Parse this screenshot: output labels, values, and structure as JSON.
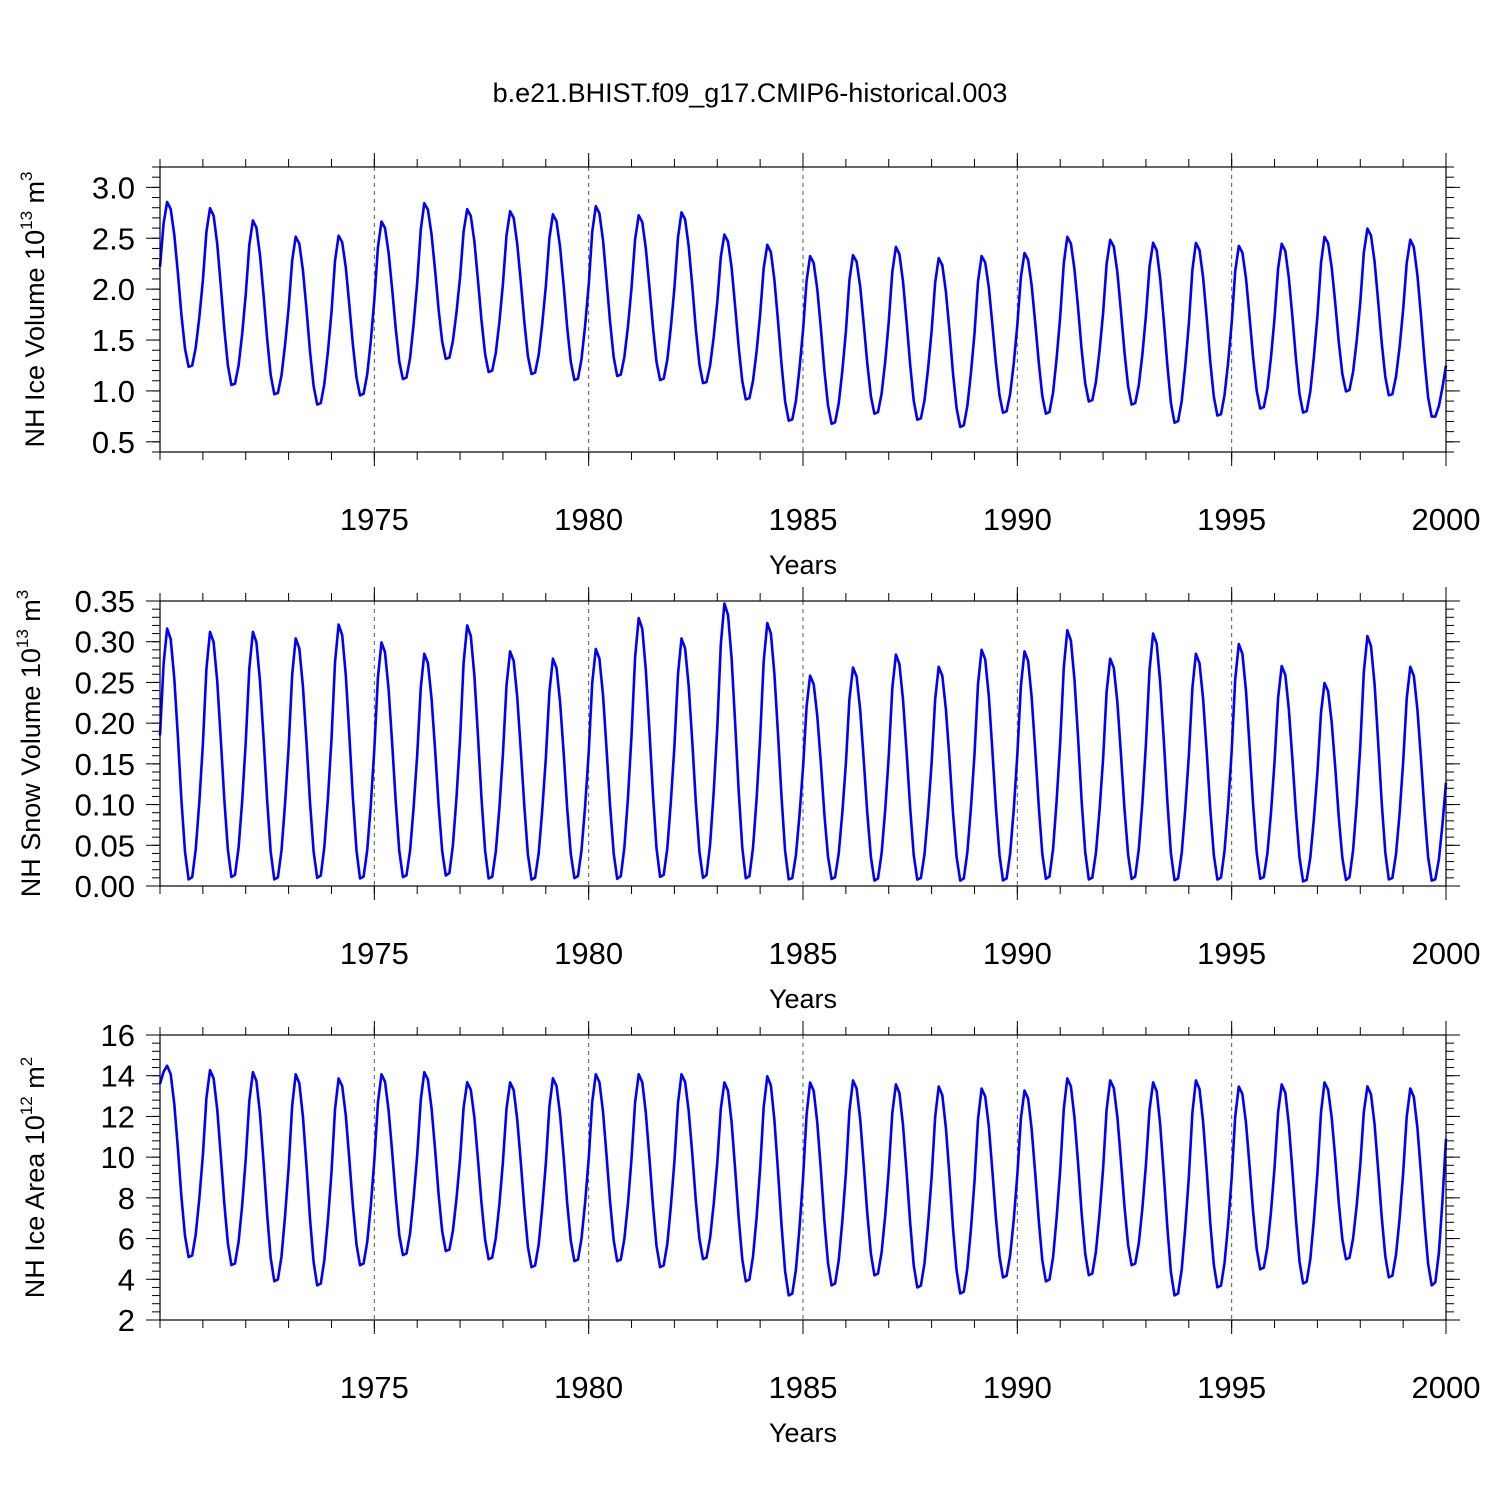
{
  "figure_title": "b.e21.BHIST.f09_g17.CMIP6-historical.003",
  "series_color": "#0000ff",
  "chart_data": [
    {
      "type": "line",
      "name": "ice-volume",
      "ylabel": "NH Ice Volume",
      "ylabel_exp": "10",
      "ylabel_exp_power": "13",
      "ylabel_unit": "m",
      "ylabel_unit_power": "3",
      "xlabel": "Years",
      "xlim": [
        1970.0,
        2000.0
      ],
      "ylim": [
        0.4,
        3.2
      ],
      "yticks": [
        0.5,
        1.0,
        1.5,
        2.0,
        2.5,
        3.0
      ],
      "ytick_labels": [
        "0.5",
        "1.0",
        "1.5",
        "2.0",
        "2.5",
        "3.0"
      ],
      "xticks": [
        1975,
        1980,
        1985,
        1990,
        1995,
        2000
      ],
      "xtick_labels": [
        "1975",
        "1980",
        "1985",
        "1990",
        "1995",
        "2000"
      ],
      "grid": "dashed vertical at major x ticks",
      "start": 2.22,
      "end_value": 1.25,
      "annual_max": [
        2.86,
        2.8,
        2.68,
        2.52,
        2.53,
        2.67,
        2.85,
        2.79,
        2.77,
        2.74,
        2.82,
        2.73,
        2.76,
        2.54,
        2.44,
        2.33,
        2.34,
        2.42,
        2.31,
        2.33,
        2.36,
        2.52,
        2.49,
        2.46,
        2.46,
        2.43,
        2.45,
        2.52,
        2.6,
        2.49
      ],
      "annual_min": [
        1.22,
        1.04,
        0.95,
        0.85,
        0.94,
        1.1,
        1.3,
        1.17,
        1.15,
        1.09,
        1.13,
        1.09,
        1.06,
        0.9,
        0.69,
        0.66,
        0.76,
        0.7,
        0.63,
        0.77,
        0.76,
        0.88,
        0.85,
        0.67,
        0.74,
        0.81,
        0.77,
        0.98,
        0.94,
        0.73
      ]
    },
    {
      "type": "line",
      "name": "snow-volume",
      "ylabel": "NH Snow Volume",
      "ylabel_exp": "10",
      "ylabel_exp_power": "13",
      "ylabel_unit": "m",
      "ylabel_unit_power": "3",
      "xlabel": "Years",
      "xlim": [
        1970.0,
        2000.0
      ],
      "ylim": [
        0.0,
        0.35
      ],
      "yticks": [
        0.0,
        0.05,
        0.1,
        0.15,
        0.2,
        0.25,
        0.3,
        0.35
      ],
      "ytick_labels": [
        "0.00",
        "0.05",
        "0.10",
        "0.15",
        "0.20",
        "0.25",
        "0.30",
        "0.35"
      ],
      "xticks": [
        1975,
        1980,
        1985,
        1990,
        1995,
        2000
      ],
      "xtick_labels": [
        "1975",
        "1980",
        "1985",
        "1990",
        "1995",
        "2000"
      ],
      "grid": "dashed vertical at major x ticks",
      "start": 0.185,
      "end_value": 0.127,
      "annual_max": [
        0.317,
        0.313,
        0.313,
        0.305,
        0.322,
        0.3,
        0.286,
        0.321,
        0.289,
        0.28,
        0.292,
        0.33,
        0.305,
        0.348,
        0.324,
        0.259,
        0.269,
        0.285,
        0.27,
        0.291,
        0.289,
        0.315,
        0.28,
        0.311,
        0.286,
        0.298,
        0.271,
        0.25,
        0.308,
        0.27
      ],
      "annual_min": [
        0.005,
        0.008,
        0.005,
        0.007,
        0.006,
        0.008,
        0.01,
        0.006,
        0.005,
        0.007,
        0.006,
        0.008,
        0.007,
        0.006,
        0.005,
        0.006,
        0.004,
        0.005,
        0.004,
        0.004,
        0.006,
        0.005,
        0.006,
        0.004,
        0.005,
        0.006,
        0.003,
        0.005,
        0.005,
        0.004
      ]
    },
    {
      "type": "line",
      "name": "ice-area",
      "ylabel": "NH Ice Area",
      "ylabel_exp": "10",
      "ylabel_exp_power": "12",
      "ylabel_unit": "m",
      "ylabel_unit_power": "2",
      "xlabel": "Years",
      "xlim": [
        1970.0,
        2000.0
      ],
      "ylim": [
        2,
        16
      ],
      "yticks": [
        2,
        4,
        6,
        8,
        10,
        12,
        14,
        16
      ],
      "ytick_labels": [
        "2",
        "4",
        "6",
        "8",
        "10",
        "12",
        "14",
        "16"
      ],
      "xticks": [
        1975,
        1980,
        1985,
        1990,
        1995,
        2000
      ],
      "xtick_labels": [
        "1975",
        "1980",
        "1985",
        "1990",
        "1995",
        "2000"
      ],
      "grid": "dashed vertical at major x ticks",
      "start": 13.6,
      "end_value": 10.9,
      "annual_max": [
        14.5,
        14.3,
        14.2,
        14.1,
        13.9,
        14.1,
        14.2,
        13.7,
        13.7,
        13.9,
        14.1,
        14.1,
        14.1,
        13.7,
        14.0,
        13.7,
        13.8,
        13.6,
        13.5,
        13.4,
        13.3,
        13.9,
        13.8,
        13.7,
        13.8,
        13.5,
        13.6,
        13.7,
        13.5,
        13.4
      ],
      "annual_min": [
        5.0,
        4.6,
        3.8,
        3.6,
        4.6,
        5.1,
        5.3,
        4.9,
        4.5,
        4.8,
        4.8,
        4.5,
        4.9,
        3.8,
        3.1,
        3.6,
        4.1,
        3.5,
        3.2,
        4.0,
        3.8,
        4.1,
        4.6,
        3.1,
        3.5,
        4.4,
        3.7,
        4.9,
        4.0,
        3.6
      ]
    }
  ]
}
